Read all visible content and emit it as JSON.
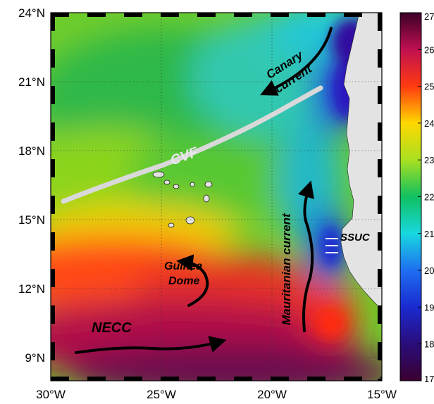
{
  "map": {
    "lat_ticks": [
      "24°N",
      "21°N",
      "18°N",
      "15°N",
      "12°N",
      "9°N"
    ],
    "lon_ticks": [
      "30°W",
      "25°W",
      "20°W",
      "15°W"
    ],
    "extent": {
      "lon_west": -30,
      "lon_east": -15,
      "lat_south": 8,
      "lat_north": 24
    },
    "grid": true
  },
  "colorbar": {
    "min": 17,
    "max": 27,
    "ticks": [
      "27",
      "26",
      "25",
      "24",
      "23",
      "22",
      "21",
      "20",
      "19",
      "18",
      "17"
    ]
  },
  "annotations": {
    "canary_1": "Canary",
    "canary_2": "current",
    "cvf": "CVF",
    "mauritanian": "Mauritanian  current",
    "ssuc": "SSUC",
    "guinea_1": "Guinea",
    "guinea_2": "Dome",
    "necc": "NECC"
  },
  "colors": {
    "front": "#d9d9d9",
    "land": "#e3e3e3",
    "arrow": "#000000"
  }
}
